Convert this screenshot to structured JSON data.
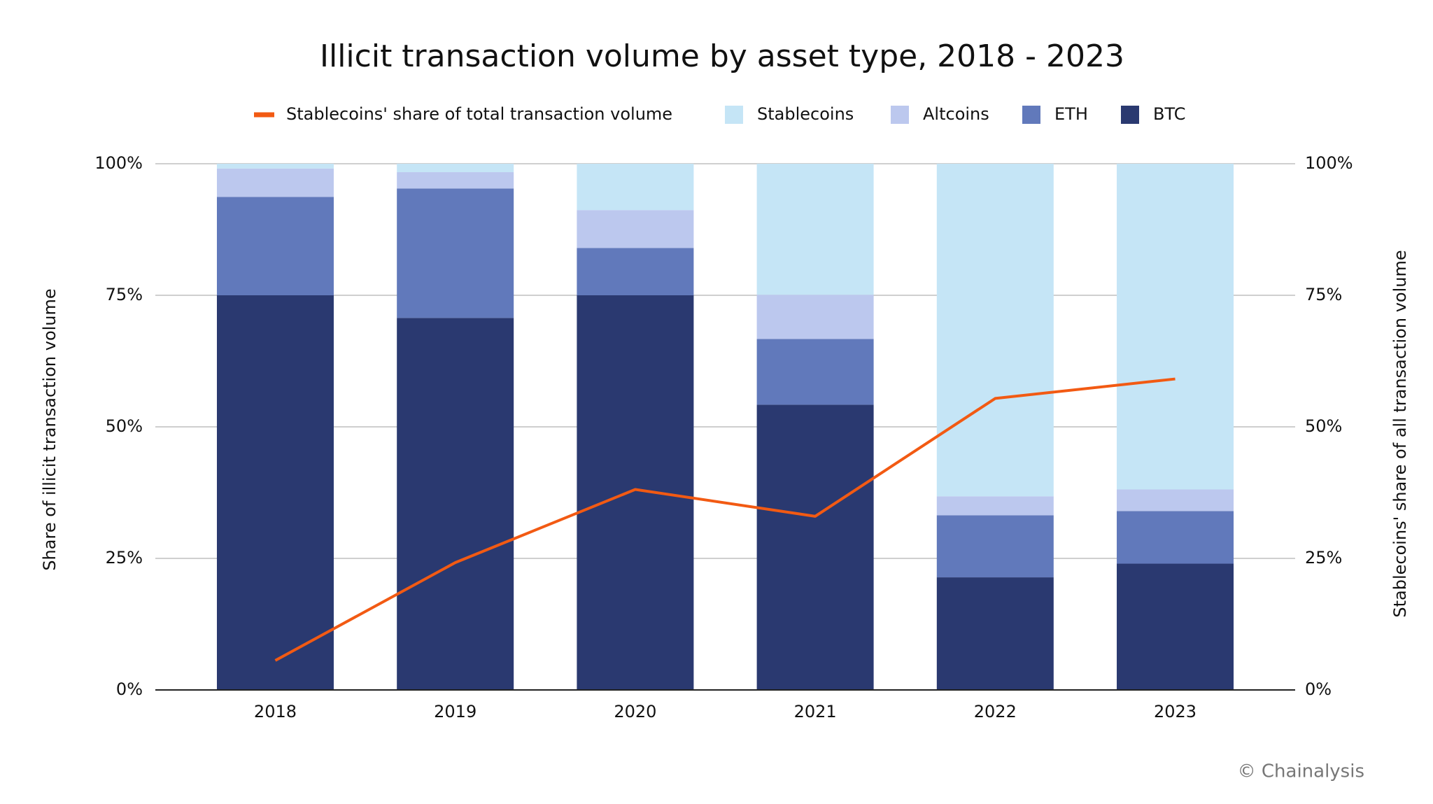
{
  "chart_data": {
    "type": "bar",
    "stacked": true,
    "title": "Illicit transaction volume by asset type, 2018 - 2023",
    "y_label": "Share of illicit transaction volume",
    "y2_label": "Stablecoins' share of all transaction volume",
    "source": "© Chainalysis",
    "categories": [
      "2018",
      "2019",
      "2020",
      "2021",
      "2022",
      "2023"
    ],
    "series": [
      {
        "name": "BTC",
        "type": "bar",
        "color": "#2a3970",
        "values": [
          75,
          70.7,
          75,
          54.2,
          21.4,
          24
        ]
      },
      {
        "name": "ETH",
        "type": "bar",
        "color": "#6179bb",
        "values": [
          18.7,
          24.6,
          9,
          12.5,
          11.8,
          10
        ]
      },
      {
        "name": "Altcoins",
        "type": "bar",
        "color": "#bcc8ee",
        "values": [
          5.4,
          3.1,
          7.2,
          8.4,
          3.6,
          4.1
        ]
      },
      {
        "name": "Stablecoins",
        "type": "bar",
        "color": "#c5e5f6",
        "values": [
          0.9,
          1.6,
          8.8,
          24.9,
          63.2,
          61.9
        ]
      },
      {
        "name": "Stablecoins' share of total transaction volume",
        "type": "line",
        "axis": "y2",
        "color": "#f25a13",
        "values": [
          5.6,
          24.2,
          38.1,
          33,
          55.4,
          59.1
        ]
      }
    ],
    "ylim": [
      0,
      100
    ],
    "yticks": [
      {
        "value": 0,
        "label": "0%"
      },
      {
        "value": 25,
        "label": "25%"
      },
      {
        "value": 50,
        "label": "50%"
      },
      {
        "value": 75,
        "label": "75%"
      },
      {
        "value": 100,
        "label": "100%"
      }
    ],
    "y2lim": [
      0,
      100
    ],
    "y2ticks": [
      {
        "value": 0,
        "label": "0%"
      },
      {
        "value": 25,
        "label": "25%"
      },
      {
        "value": 50,
        "label": "50%"
      },
      {
        "value": 75,
        "label": "75%"
      },
      {
        "value": 100,
        "label": "100%"
      }
    ],
    "grid": true
  }
}
